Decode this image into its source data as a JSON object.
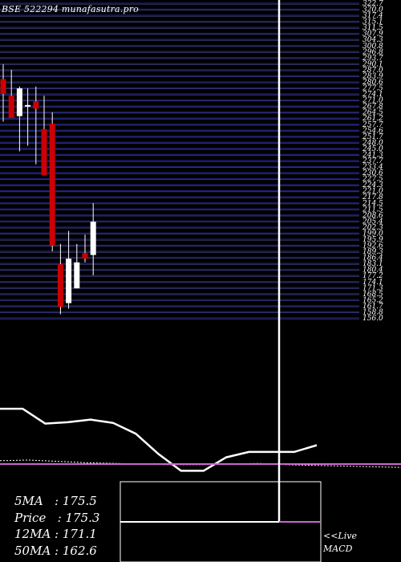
{
  "header": {
    "title": "BSE 522294  munafasutra.pro"
  },
  "stats": [
    {
      "label": "5MA   :",
      "value": "175.5"
    },
    {
      "label": "Price   :",
      "value": "175.3"
    },
    {
      "label": "12MA :",
      "value": "171.1"
    },
    {
      "label": "50MA :",
      "value": "162.6"
    }
  ],
  "footer": {
    "live": "<<Live",
    "macd": "MACD"
  },
  "colors": {
    "background": "#000000",
    "grid_line": "#1a1a6e",
    "grid_line_light": "#6d6db8",
    "bull": "#ffffff",
    "bear": "#cc0000",
    "ma_line": "#ffffff",
    "macd_line": "#cc66cc"
  },
  "chart_data": {
    "type": "candlestick",
    "title": "BSE 522294  munafasutra.pro",
    "ylim": [
      150,
      320
    ],
    "y_tick_labels": [
      "322.7",
      "320.0",
      "317.4",
      "315.1",
      "311.5",
      "307.9",
      "304.3",
      "300.8",
      "296.8",
      "293.7",
      "290.1",
      "287.0",
      "283.9",
      "280.6",
      "277.5",
      "274.1",
      "271.0",
      "267.8",
      "264.5",
      "261.2",
      "257.7",
      "254.6",
      "251.7",
      "248.0",
      "245.0",
      "241.3",
      "237.7",
      "233.4",
      "230.6",
      "227.5",
      "224.3",
      "221.0",
      "217.8",
      "214.5",
      "211.5",
      "208.6",
      "205.4",
      "202.3",
      "199.0",
      "195.9",
      "192.6",
      "189.3",
      "186.4",
      "183.1",
      "180.4",
      "177.2",
      "174.1",
      "171.3",
      "168.5",
      "165.2",
      "161.7",
      "158.8",
      "156.0"
    ],
    "candles": [
      {
        "open": 271,
        "high": 287,
        "low": 256,
        "close": 279,
        "dir": "bear"
      },
      {
        "open": 270,
        "high": 284,
        "low": 258,
        "close": 258,
        "dir": "bear"
      },
      {
        "open": 259,
        "high": 275,
        "low": 240,
        "close": 274,
        "dir": "bull"
      },
      {
        "open": 265,
        "high": 274,
        "low": 243,
        "close": 265,
        "dir": "bull"
      },
      {
        "open": 267,
        "high": 275,
        "low": 233,
        "close": 263,
        "dir": "bear"
      },
      {
        "open": 252,
        "high": 270,
        "low": 227,
        "close": 227,
        "dir": "bear"
      },
      {
        "open": 255,
        "high": 261,
        "low": 186,
        "close": 189,
        "dir": "bear"
      },
      {
        "open": 179,
        "high": 190,
        "low": 152,
        "close": 156,
        "dir": "bear"
      },
      {
        "open": 158,
        "high": 197,
        "low": 155,
        "close": 182,
        "dir": "bull"
      },
      {
        "open": 166,
        "high": 190,
        "low": 166,
        "close": 180,
        "dir": "bull"
      },
      {
        "open": 185,
        "high": 195,
        "low": 180,
        "close": 182,
        "dir": "bear"
      },
      {
        "open": 184,
        "high": 212,
        "low": 173,
        "close": 202,
        "dir": "bull"
      }
    ],
    "indicator_panel": {
      "ma_line": [
        0.82,
        0.82,
        0.6,
        0.62,
        0.66,
        0.61,
        0.45,
        0.15,
        -0.1,
        -0.1,
        0.1,
        0.18,
        0.18,
        0.18,
        0.28
      ],
      "macd_line": [
        0.05,
        0.06,
        0.04,
        0.02,
        0.01,
        0.0,
        -0.01,
        -0.01,
        0.0,
        0.01,
        -0.01,
        -0.02,
        -0.03,
        -0.04,
        -0.05
      ]
    }
  }
}
